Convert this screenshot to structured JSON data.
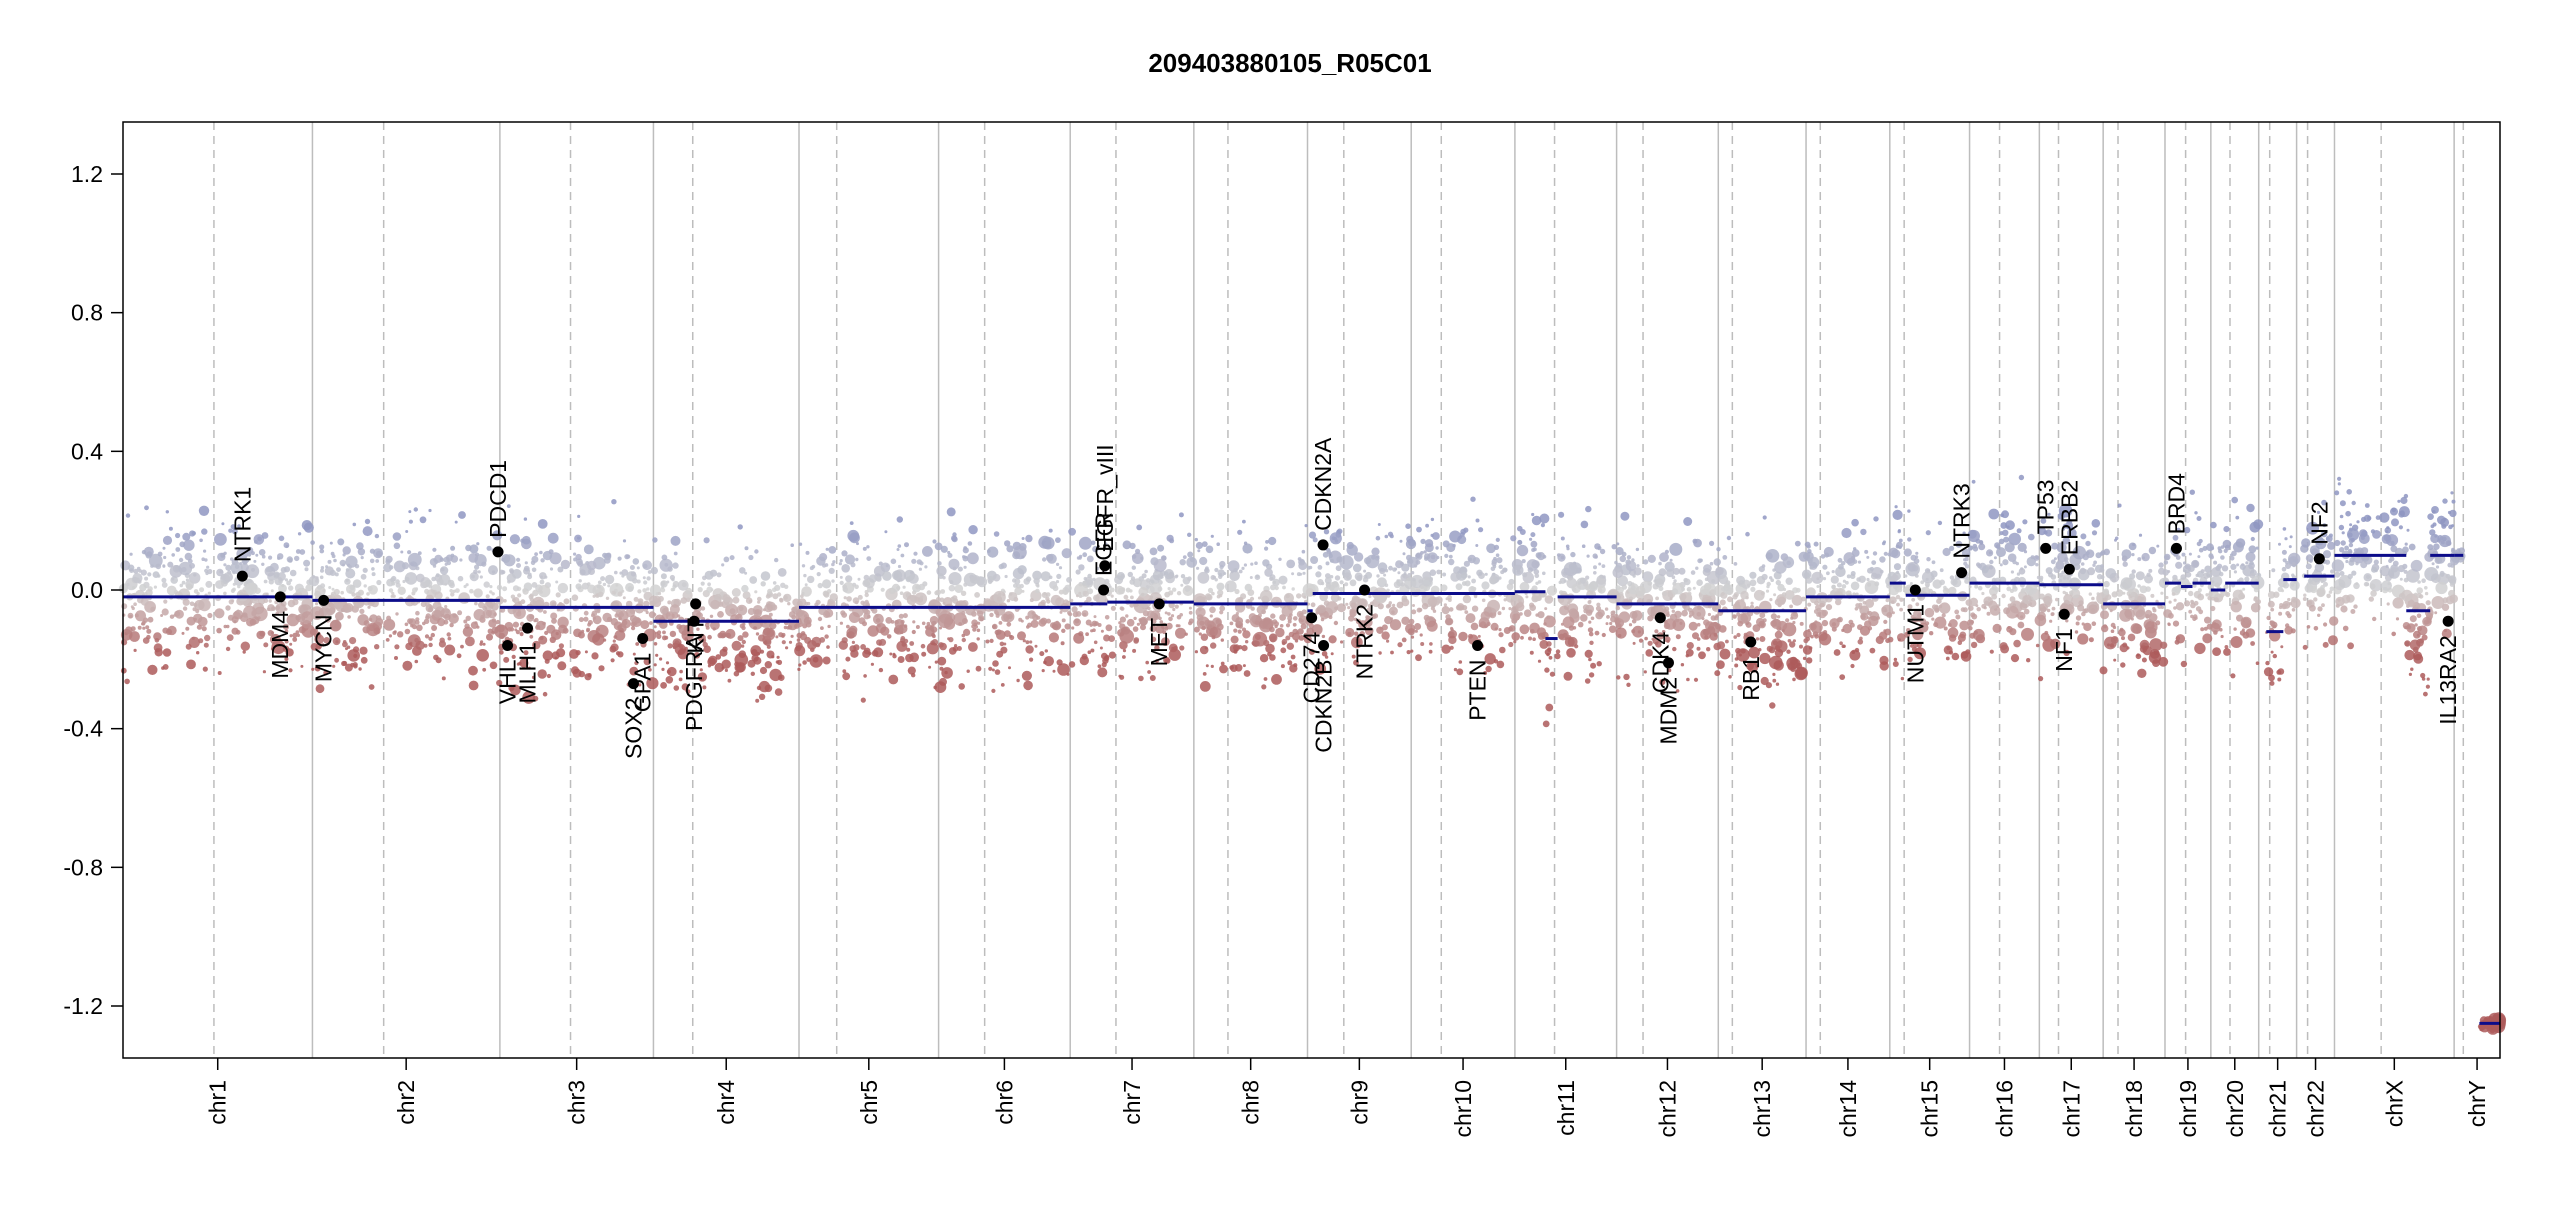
{
  "chart_data": {
    "type": "scatter",
    "title": "209403880105_R05C01",
    "xlabel": "",
    "ylabel": "",
    "ylim": [
      -1.35,
      1.35
    ],
    "yticks": [
      -1.2,
      -0.8,
      -0.4,
      0.0,
      0.4,
      0.8,
      1.2
    ],
    "ytick_labels": [
      "-1.2",
      "-0.8",
      "-0.4",
      "0.0",
      "0.4",
      "0.8",
      "1.2"
    ],
    "grid": "chromosome boundary lines (solid) and centromere lines (dashed)",
    "colors": {
      "gain": "#8f96c2",
      "neutral": "#cfcfcf",
      "loss": "#ad5a5a",
      "segment": "#0c0c8a",
      "boundary": "#bdbdbd",
      "gene_point": "#000000"
    },
    "chromosomes": [
      {
        "name": "chr1",
        "centromere": 0.48,
        "segments": [
          {
            "from": 0.0,
            "to": 1.0,
            "value": -0.02
          }
        ]
      },
      {
        "name": "chr2",
        "centromere": 0.38,
        "segments": [
          {
            "from": 0.0,
            "to": 1.0,
            "value": -0.03
          }
        ]
      },
      {
        "name": "chr3",
        "centromere": 0.46,
        "segments": [
          {
            "from": 0.0,
            "to": 1.0,
            "value": -0.05
          }
        ]
      },
      {
        "name": "chr4",
        "centromere": 0.27,
        "segments": [
          {
            "from": 0.0,
            "to": 1.0,
            "value": -0.09
          }
        ]
      },
      {
        "name": "chr5",
        "centromere": 0.27,
        "segments": [
          {
            "from": 0.0,
            "to": 1.0,
            "value": -0.05
          }
        ]
      },
      {
        "name": "chr6",
        "centromere": 0.35,
        "segments": [
          {
            "from": 0.0,
            "to": 1.0,
            "value": -0.05
          }
        ]
      },
      {
        "name": "chr7",
        "centromere": 0.37,
        "segments": [
          {
            "from": 0.0,
            "to": 0.3,
            "value": -0.04
          },
          {
            "from": 0.3,
            "to": 1.0,
            "value": -0.035
          }
        ]
      },
      {
        "name": "chr8",
        "centromere": 0.3,
        "segments": [
          {
            "from": 0.0,
            "to": 1.0,
            "value": -0.04
          }
        ]
      },
      {
        "name": "chr9",
        "centromere": 0.35,
        "segments": [
          {
            "from": 0.0,
            "to": 0.05,
            "value": -0.06
          },
          {
            "from": 0.05,
            "to": 1.0,
            "value": -0.01
          }
        ]
      },
      {
        "name": "chr10",
        "centromere": 0.29,
        "segments": [
          {
            "from": 0.0,
            "to": 1.0,
            "value": -0.01
          }
        ]
      },
      {
        "name": "chr11",
        "centromere": 0.39,
        "segments": [
          {
            "from": 0.0,
            "to": 0.3,
            "value": -0.005
          },
          {
            "from": 0.3,
            "to": 0.42,
            "value": -0.14
          },
          {
            "from": 0.42,
            "to": 1.0,
            "value": -0.02
          }
        ]
      },
      {
        "name": "chr12",
        "centromere": 0.26,
        "segments": [
          {
            "from": 0.0,
            "to": 1.0,
            "value": -0.04
          }
        ]
      },
      {
        "name": "chr13",
        "centromere": 0.16,
        "segments": [
          {
            "from": 0.0,
            "to": 1.0,
            "value": -0.06
          }
        ]
      },
      {
        "name": "chr14",
        "centromere": 0.17,
        "segments": [
          {
            "from": 0.0,
            "to": 1.0,
            "value": -0.02
          }
        ]
      },
      {
        "name": "chr15",
        "centromere": 0.18,
        "segments": [
          {
            "from": 0.0,
            "to": 0.2,
            "value": 0.02
          },
          {
            "from": 0.2,
            "to": 1.0,
            "value": -0.015
          }
        ]
      },
      {
        "name": "chr16",
        "centromere": 0.43,
        "segments": [
          {
            "from": 0.0,
            "to": 1.0,
            "value": 0.02
          }
        ]
      },
      {
        "name": "chr17",
        "centromere": 0.3,
        "segments": [
          {
            "from": 0.0,
            "to": 1.0,
            "value": 0.015
          }
        ]
      },
      {
        "name": "chr18",
        "centromere": 0.24,
        "segments": [
          {
            "from": 0.0,
            "to": 1.0,
            "value": -0.04
          }
        ]
      },
      {
        "name": "chr19",
        "centromere": 0.45,
        "segments": [
          {
            "from": 0.0,
            "to": 0.35,
            "value": 0.02
          },
          {
            "from": 0.35,
            "to": 0.6,
            "value": 0.01
          },
          {
            "from": 0.6,
            "to": 1.0,
            "value": 0.02
          }
        ]
      },
      {
        "name": "chr20",
        "centromere": 0.4,
        "segments": [
          {
            "from": 0.0,
            "to": 0.3,
            "value": 0.0
          },
          {
            "from": 0.3,
            "to": 1.0,
            "value": 0.02
          }
        ]
      },
      {
        "name": "chr21",
        "centromere": 0.29,
        "segments": [
          {
            "from": 0.2,
            "to": 0.65,
            "value": -0.12
          },
          {
            "from": 0.65,
            "to": 1.0,
            "value": 0.03
          }
        ]
      },
      {
        "name": "chr22",
        "centromere": 0.29,
        "segments": [
          {
            "from": 0.2,
            "to": 1.0,
            "value": 0.04
          }
        ]
      },
      {
        "name": "chrX",
        "centromere": 0.39,
        "segments": [
          {
            "from": 0.0,
            "to": 0.6,
            "value": 0.1
          },
          {
            "from": 0.6,
            "to": 0.8,
            "value": -0.06
          },
          {
            "from": 0.8,
            "to": 1.0,
            "value": 0.1
          }
        ]
      },
      {
        "name": "chrY",
        "centromere": 0.2,
        "segments": [
          {
            "from": 0.0,
            "to": 0.2,
            "value": 0.1
          },
          {
            "from": 0.55,
            "to": 1.0,
            "value": -1.25
          }
        ]
      }
    ],
    "genes": [
      {
        "name": "NTRK1",
        "chrom": "chr1",
        "pos": 0.63,
        "value": 0.04,
        "label_side": "up"
      },
      {
        "name": "MDM4",
        "chrom": "chr1",
        "pos": 0.83,
        "value": -0.02,
        "label_side": "down"
      },
      {
        "name": "MYCN",
        "chrom": "chr2",
        "pos": 0.06,
        "value": -0.03,
        "label_side": "down"
      },
      {
        "name": "PDCD1",
        "chrom": "chr2",
        "pos": 0.99,
        "value": 0.11,
        "label_side": "up"
      },
      {
        "name": "VHL",
        "chrom": "chr3",
        "pos": 0.05,
        "value": -0.16,
        "label_side": "down"
      },
      {
        "name": "MLH1",
        "chrom": "chr3",
        "pos": 0.18,
        "value": -0.11,
        "label_side": "down"
      },
      {
        "name": "SOX2",
        "chrom": "chr3",
        "pos": 0.87,
        "value": -0.27,
        "label_side": "down"
      },
      {
        "name": "GPA1",
        "chrom": "chr3",
        "pos": 0.93,
        "value": -0.14,
        "label_side": "down"
      },
      {
        "name": "PDGFRA",
        "chrom": "chr4",
        "pos": 0.28,
        "value": -0.09,
        "label_side": "down"
      },
      {
        "name": "KIT",
        "chrom": "chr4",
        "pos": 0.29,
        "value": -0.04,
        "label_side": "down"
      },
      {
        "name": "EGFR",
        "chrom": "chr7",
        "pos": 0.27,
        "value": 0.0,
        "label_side": "up"
      },
      {
        "name": "EGFR_vIII",
        "chrom": "chr7",
        "pos": 0.28,
        "value": 0.07,
        "label_side": "up"
      },
      {
        "name": "MET",
        "chrom": "chr7",
        "pos": 0.72,
        "value": -0.04,
        "label_side": "down"
      },
      {
        "name": "CD274",
        "chrom": "chr9",
        "pos": 0.04,
        "value": -0.08,
        "label_side": "down"
      },
      {
        "name": "CDKN2A",
        "chrom": "chr9",
        "pos": 0.15,
        "value": 0.13,
        "label_side": "up"
      },
      {
        "name": "CDKN2B",
        "chrom": "chr9",
        "pos": 0.155,
        "value": -0.16,
        "label_side": "down"
      },
      {
        "name": "NTRK2",
        "chrom": "chr9",
        "pos": 0.55,
        "value": 0.0,
        "label_side": "down"
      },
      {
        "name": "PTEN",
        "chrom": "chr10",
        "pos": 0.64,
        "value": -0.16,
        "label_side": "down"
      },
      {
        "name": "CDK4",
        "chrom": "chr12",
        "pos": 0.43,
        "value": -0.08,
        "label_side": "down"
      },
      {
        "name": "MDM2",
        "chrom": "chr12",
        "pos": 0.51,
        "value": -0.21,
        "label_side": "down"
      },
      {
        "name": "RB1",
        "chrom": "chr13",
        "pos": 0.37,
        "value": -0.15,
        "label_side": "down"
      },
      {
        "name": "NUTM1",
        "chrom": "chr15",
        "pos": 0.32,
        "value": 0.0,
        "label_side": "down"
      },
      {
        "name": "NTRK3",
        "chrom": "chr15",
        "pos": 0.9,
        "value": 0.05,
        "label_side": "up"
      },
      {
        "name": "TP53",
        "chrom": "chr17",
        "pos": 0.1,
        "value": 0.12,
        "label_side": "up"
      },
      {
        "name": "ERBB2",
        "chrom": "chr17",
        "pos": 0.47,
        "value": 0.06,
        "label_side": "up"
      },
      {
        "name": "NF1",
        "chrom": "chr17",
        "pos": 0.39,
        "value": -0.07,
        "label_side": "down"
      },
      {
        "name": "BRD4",
        "chrom": "chr19",
        "pos": 0.25,
        "value": 0.12,
        "label_side": "up"
      },
      {
        "name": "NF2",
        "chrom": "chr22",
        "pos": 0.6,
        "value": 0.09,
        "label_side": "up"
      },
      {
        "name": "IL13RA2",
        "chrom": "chrX",
        "pos": 0.95,
        "value": -0.09,
        "label_side": "down"
      }
    ]
  }
}
